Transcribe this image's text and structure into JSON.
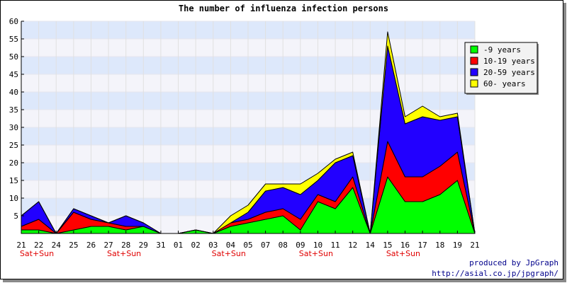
{
  "chart_data": {
    "type": "area",
    "stacked": true,
    "title": "The number of influenza infection persons",
    "categories": [
      "21",
      "22",
      "24",
      "25",
      "26",
      "27",
      "28",
      "29",
      "31",
      "01",
      "02",
      "03",
      "04",
      "05",
      "07",
      "08",
      "09",
      "10",
      "11",
      "12",
      "14",
      "15",
      "16",
      "17",
      "18",
      "19",
      "21"
    ],
    "weekend_labels": [
      {
        "category_index": 0,
        "text": "Sat+Sun"
      },
      {
        "category_index": 5,
        "text": "Sat+Sun"
      },
      {
        "category_index": 11,
        "text": "Sat+Sun"
      },
      {
        "category_index": 16,
        "text": "Sat+Sun"
      },
      {
        "category_index": 21,
        "text": "Sat+Sun"
      }
    ],
    "series": [
      {
        "name": "-9 years",
        "color": "#00ff00",
        "values": [
          1,
          1,
          0,
          1,
          2,
          2,
          1,
          2,
          0,
          0,
          1,
          0,
          2,
          3,
          4,
          5,
          1,
          9,
          7,
          13,
          0,
          16,
          9,
          9,
          11,
          15,
          0
        ]
      },
      {
        "name": "10-19 years",
        "color": "#ff0000",
        "values": [
          1,
          3,
          0,
          5,
          2,
          1,
          1,
          0,
          0,
          0,
          0,
          0,
          1,
          1,
          2,
          2,
          3,
          2,
          2,
          3,
          0,
          10,
          7,
          7,
          8,
          8,
          0
        ]
      },
      {
        "name": "20-59 years",
        "color": "#2200ff",
        "values": [
          3,
          5,
          0,
          1,
          1,
          0,
          3,
          1,
          0,
          0,
          0,
          0,
          0,
          2,
          6,
          6,
          7,
          4,
          11,
          6,
          0,
          27,
          15,
          17,
          13,
          10,
          0
        ]
      },
      {
        "name": "60- years",
        "color": "#ffff00",
        "values": [
          0,
          0,
          0,
          0,
          0,
          0,
          0,
          0,
          0,
          0,
          0,
          0,
          2,
          2,
          2,
          1,
          3,
          2,
          1,
          1,
          0,
          4,
          2,
          3,
          1,
          1,
          0
        ]
      }
    ],
    "y_ticks": [
      5,
      10,
      15,
      20,
      25,
      30,
      35,
      40,
      45,
      50,
      55,
      60
    ],
    "ylim": [
      0,
      60
    ],
    "grid": true,
    "legend_position": "top-right"
  },
  "footer": {
    "line1": "produced by JpGraph",
    "line2": "http://asial.co.jp/jpgraph/"
  }
}
